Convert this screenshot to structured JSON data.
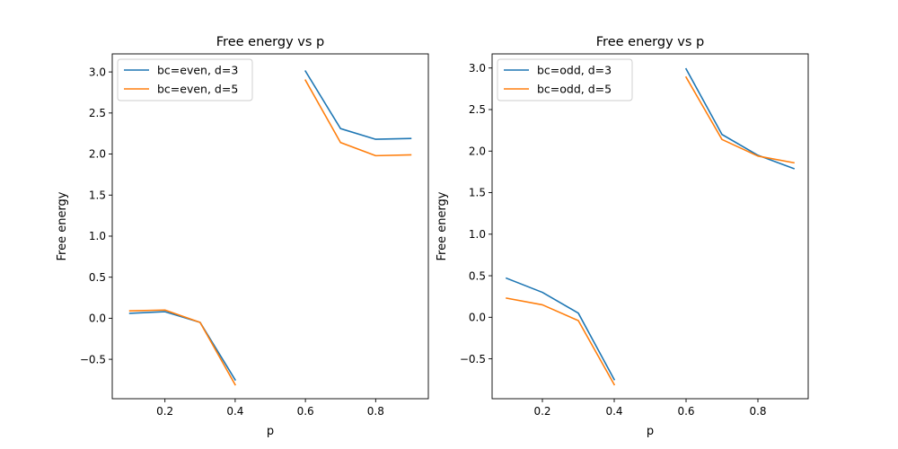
{
  "chart_data": [
    {
      "type": "line",
      "title": "Free energy vs p",
      "xlabel": "p",
      "ylabel": "Free energy",
      "xlim": [
        0.05,
        0.95
      ],
      "ylim": [
        -0.98,
        3.22
      ],
      "xticks": [
        0.2,
        0.4,
        0.6,
        0.8
      ],
      "xtick_labels": [
        "0.2",
        "0.4",
        "0.6",
        "0.8"
      ],
      "yticks": [
        -0.5,
        0.0,
        0.5,
        1.0,
        1.5,
        2.0,
        2.5,
        3.0
      ],
      "ytick_labels": [
        "−0.5",
        "0.0",
        "0.5",
        "1.0",
        "1.5",
        "2.0",
        "2.5",
        "3.0"
      ],
      "grid": false,
      "legend": "upper-left",
      "series": [
        {
          "name": "bc=even, d=3",
          "color": "#1f77b4",
          "segments": [
            {
              "x": [
                0.1,
                0.2,
                0.3,
                0.4
              ],
              "y": [
                0.06,
                0.08,
                -0.05,
                -0.75
              ]
            },
            {
              "x": [
                0.6,
                0.7,
                0.8,
                0.9
              ],
              "y": [
                3.01,
                2.31,
                2.18,
                2.19
              ]
            }
          ]
        },
        {
          "name": "bc=even, d=5",
          "color": "#ff7f0e",
          "segments": [
            {
              "x": [
                0.1,
                0.2,
                0.3,
                0.4
              ],
              "y": [
                0.09,
                0.1,
                -0.05,
                -0.81
              ]
            },
            {
              "x": [
                0.6,
                0.7,
                0.8,
                0.9
              ],
              "y": [
                2.9,
                2.14,
                1.98,
                1.99
              ]
            }
          ]
        }
      ]
    },
    {
      "type": "line",
      "title": "Free energy vs p",
      "xlabel": "p",
      "ylabel": "Free energy",
      "xlim": [
        0.06,
        0.94
      ],
      "ylim": [
        -0.98,
        3.17
      ],
      "xticks": [
        0.2,
        0.4,
        0.6,
        0.8
      ],
      "xtick_labels": [
        "0.2",
        "0.4",
        "0.6",
        "0.8"
      ],
      "yticks": [
        -0.5,
        0.0,
        0.5,
        1.0,
        1.5,
        2.0,
        2.5,
        3.0
      ],
      "ytick_labels": [
        "−0.5",
        "0.0",
        "0.5",
        "1.0",
        "1.5",
        "2.0",
        "2.5",
        "3.0"
      ],
      "grid": false,
      "legend": "upper-left",
      "series": [
        {
          "name": "bc=odd, d=3",
          "color": "#1f77b4",
          "segments": [
            {
              "x": [
                0.1,
                0.2,
                0.3,
                0.4
              ],
              "y": [
                0.47,
                0.3,
                0.05,
                -0.75
              ]
            },
            {
              "x": [
                0.6,
                0.7,
                0.8,
                0.9
              ],
              "y": [
                2.99,
                2.2,
                1.95,
                1.79
              ]
            }
          ]
        },
        {
          "name": "bc=odd, d=5",
          "color": "#ff7f0e",
          "segments": [
            {
              "x": [
                0.1,
                0.2,
                0.3,
                0.4
              ],
              "y": [
                0.23,
                0.15,
                -0.04,
                -0.81
              ]
            },
            {
              "x": [
                0.6,
                0.7,
                0.8,
                0.9
              ],
              "y": [
                2.89,
                2.14,
                1.94,
                1.86
              ]
            }
          ]
        }
      ]
    }
  ]
}
